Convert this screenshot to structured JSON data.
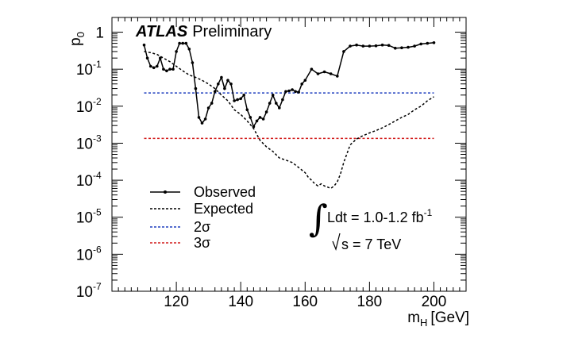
{
  "chart_data": {
    "type": "line",
    "ylabel": "p",
    "ylabel_sub": "0",
    "xlabel": "m",
    "xlabel_sub": "H",
    "xlabel_unit": "[GeV]",
    "xlim": [
      100,
      210
    ],
    "ylim": [
      1e-07,
      2.5
    ],
    "yscale": "log",
    "x_ticks": [
      120,
      140,
      160,
      180,
      200
    ],
    "y_ticks": [
      {
        "value": 1,
        "label": "1",
        "exp": ""
      },
      {
        "value": 0.1,
        "label": "10",
        "exp": "-1"
      },
      {
        "value": 0.01,
        "label": "10",
        "exp": "-2"
      },
      {
        "value": 0.001,
        "label": "10",
        "exp": "-3"
      },
      {
        "value": 0.0001,
        "label": "10",
        "exp": "-4"
      },
      {
        "value": 1e-05,
        "label": "10",
        "exp": "-5"
      },
      {
        "value": 1e-06,
        "label": "10",
        "exp": "-6"
      },
      {
        "value": 1e-07,
        "label": "10",
        "exp": "-7"
      }
    ],
    "experiment": "ATLAS",
    "status": "Preliminary",
    "lumi_prefix": "Ldt = 1.0-1.2 fb",
    "lumi_exp": "-1",
    "energy_text": "s = 7 TeV",
    "legend": [
      {
        "key": "observed",
        "label": "Observed"
      },
      {
        "key": "expected",
        "label": "Expected"
      },
      {
        "key": "sig2",
        "label": "2σ"
      },
      {
        "key": "sig3",
        "label": "3σ"
      }
    ],
    "series": [
      {
        "key": "observed",
        "name": "Observed",
        "color": "#000000",
        "style": "solid-markers",
        "x": [
          110,
          111,
          112,
          113,
          114,
          115,
          116,
          117,
          118,
          119,
          120,
          121,
          122,
          123,
          124,
          125,
          126,
          127,
          128,
          129,
          130,
          131,
          132,
          133,
          134,
          135,
          136,
          137,
          138,
          139,
          140,
          141,
          142,
          143,
          144,
          145,
          146,
          147,
          148,
          149,
          150,
          151,
          152,
          153,
          154,
          155,
          156,
          157,
          158,
          159,
          160,
          162,
          164,
          166,
          168,
          170,
          172,
          174,
          176,
          178,
          180,
          182,
          184,
          186,
          188,
          190,
          192,
          194,
          196,
          198,
          200
        ],
        "y": [
          0.45,
          0.2,
          0.12,
          0.11,
          0.12,
          0.2,
          0.1,
          0.09,
          0.1,
          0.1,
          0.3,
          0.5,
          0.5,
          0.5,
          0.35,
          0.15,
          0.03,
          0.005,
          0.0035,
          0.0045,
          0.009,
          0.012,
          0.025,
          0.04,
          0.06,
          0.03,
          0.05,
          0.04,
          0.014,
          0.015,
          0.016,
          0.02,
          0.008,
          0.005,
          0.0028,
          0.004,
          0.005,
          0.0045,
          0.007,
          0.012,
          0.02,
          0.012,
          0.009,
          0.015,
          0.025,
          0.026,
          0.028,
          0.025,
          0.024,
          0.04,
          0.05,
          0.1,
          0.075,
          0.085,
          0.075,
          0.065,
          0.3,
          0.42,
          0.45,
          0.42,
          0.42,
          0.43,
          0.45,
          0.44,
          0.37,
          0.38,
          0.39,
          0.42,
          0.48,
          0.5,
          0.52
        ]
      },
      {
        "key": "expected",
        "name": "Expected",
        "color": "#000000",
        "style": "dashed",
        "x": [
          110,
          112,
          114,
          116,
          118,
          120,
          122,
          124,
          126,
          128,
          130,
          132,
          134,
          136,
          138,
          140,
          142,
          144,
          146,
          148,
          150,
          152,
          154,
          156,
          158,
          160,
          161,
          162,
          163,
          164,
          165,
          166,
          167,
          168,
          169,
          170,
          171,
          172,
          174,
          176,
          178,
          180,
          182,
          184,
          186,
          188,
          190,
          192,
          194,
          196,
          198,
          200
        ],
        "y": [
          0.3,
          0.28,
          0.25,
          0.2,
          0.16,
          0.12,
          0.09,
          0.07,
          0.06,
          0.05,
          0.04,
          0.03,
          0.02,
          0.014,
          0.008,
          0.006,
          0.004,
          0.0025,
          0.0012,
          0.0008,
          0.0006,
          0.0004,
          0.00035,
          0.0003,
          0.00022,
          0.00016,
          0.00012,
          0.0001,
          8e-05,
          7e-05,
          8e-05,
          7e-05,
          6.5e-05,
          6e-05,
          7e-05,
          9e-05,
          0.00015,
          0.0003,
          0.0009,
          0.0013,
          0.0016,
          0.0019,
          0.0022,
          0.0026,
          0.0032,
          0.004,
          0.005,
          0.006,
          0.008,
          0.01,
          0.014,
          0.018
        ]
      },
      {
        "key": "sig2",
        "name": "2σ",
        "color": "#1f3fbf",
        "style": "dashed",
        "x": [
          110,
          200
        ],
        "y": [
          0.0228,
          0.0228
        ]
      },
      {
        "key": "sig3",
        "name": "3σ",
        "color": "#d21a1a",
        "style": "dashed",
        "x": [
          110,
          200
        ],
        "y": [
          0.00135,
          0.00135
        ]
      }
    ]
  }
}
